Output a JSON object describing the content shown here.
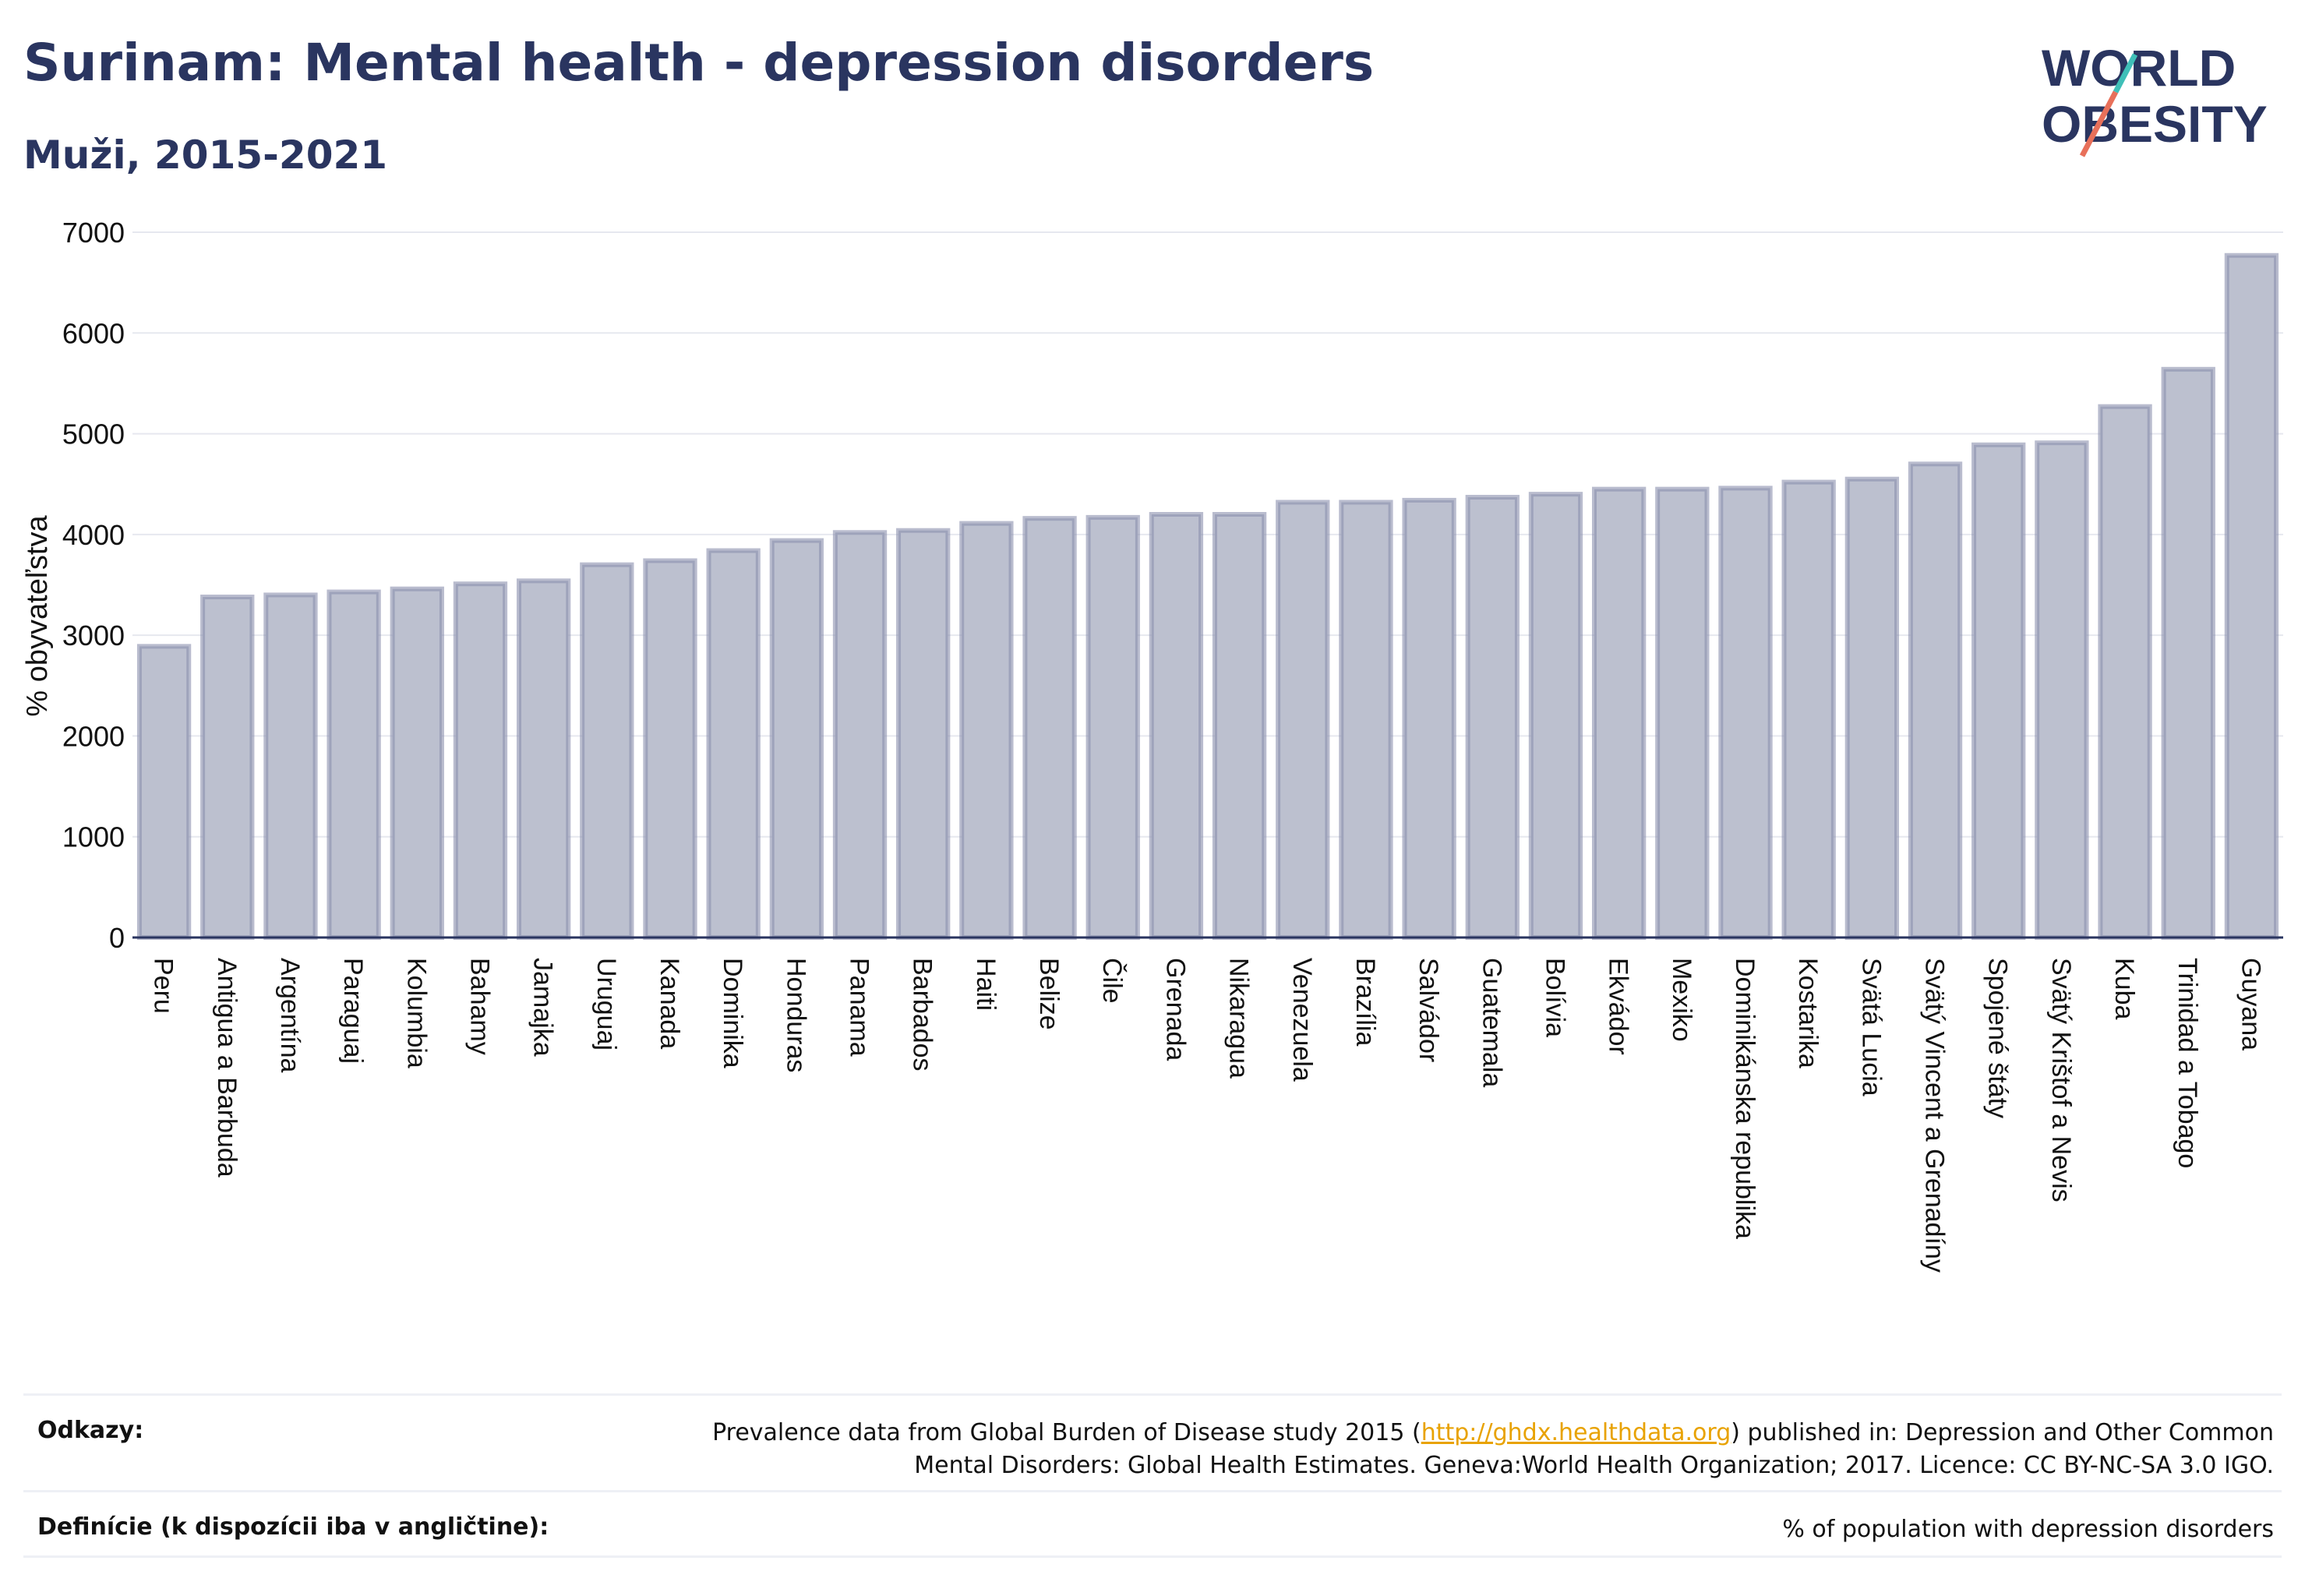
{
  "header": {
    "title": "Surinam: Mental health - depression disorders",
    "subtitle": "Muži, 2015-2021"
  },
  "logo": {
    "line1": "WORLD",
    "line2": "OBESITY",
    "accent_color": "#e8705a",
    "accent_color2": "#3fbfb8",
    "text_color": "#2a3560"
  },
  "chart_data": {
    "type": "bar",
    "ylabel": "% obyvateľstva",
    "ylim": [
      0,
      7000
    ],
    "yticks": [
      0,
      1000,
      2000,
      3000,
      4000,
      5000,
      6000,
      7000
    ],
    "grid": true,
    "bar_color": "#bcc0cf",
    "bar_border_color": "#8a90ad",
    "categories": [
      "Peru",
      "Antigua a Barbuda",
      "Argentína",
      "Paraguaj",
      "Kolumbia",
      "Bahamy",
      "Jamajka",
      "Uruguaj",
      "Kanada",
      "Dominika",
      "Honduras",
      "Panama",
      "Barbados",
      "Haiti",
      "Belize",
      "Čile",
      "Grenada",
      "Nikaragua",
      "Venezuela",
      "Brazília",
      "Salvádor",
      "Guatemala",
      "Bolívia",
      "Ekvádor",
      "Mexiko",
      "Dominikánska republika",
      "Kostarika",
      "Svätá Lucia",
      "Svätý Vincent a Grenadíny",
      "Spojené štáty",
      "Svätý Krištof a Nevis",
      "Kuba",
      "Trinidad a Tobago",
      "Guyana"
    ],
    "values": [
      2890,
      3380,
      3400,
      3430,
      3460,
      3510,
      3540,
      3700,
      3740,
      3840,
      3940,
      4020,
      4040,
      4110,
      4160,
      4170,
      4200,
      4200,
      4320,
      4320,
      4340,
      4370,
      4400,
      4450,
      4450,
      4460,
      4520,
      4550,
      4700,
      4890,
      4910,
      5270,
      5640,
      6770
    ]
  },
  "footer": {
    "references_label": "Odkazy:",
    "references_text_before": "Prevalence data from Global Burden of Disease study 2015 (",
    "references_link": "http://ghdx.healthdata.org",
    "references_text_after": ") published in: Depression and Other Common",
    "references_line2": "Mental Disorders: Global Health Estimates. Geneva:World Health Organization; 2017. Licence: CC BY-NC-SA 3.0 IGO.",
    "definition_label": "Definície (k dispozícii iba v angličtine):",
    "definition_text": "% of population with depression disorders"
  }
}
